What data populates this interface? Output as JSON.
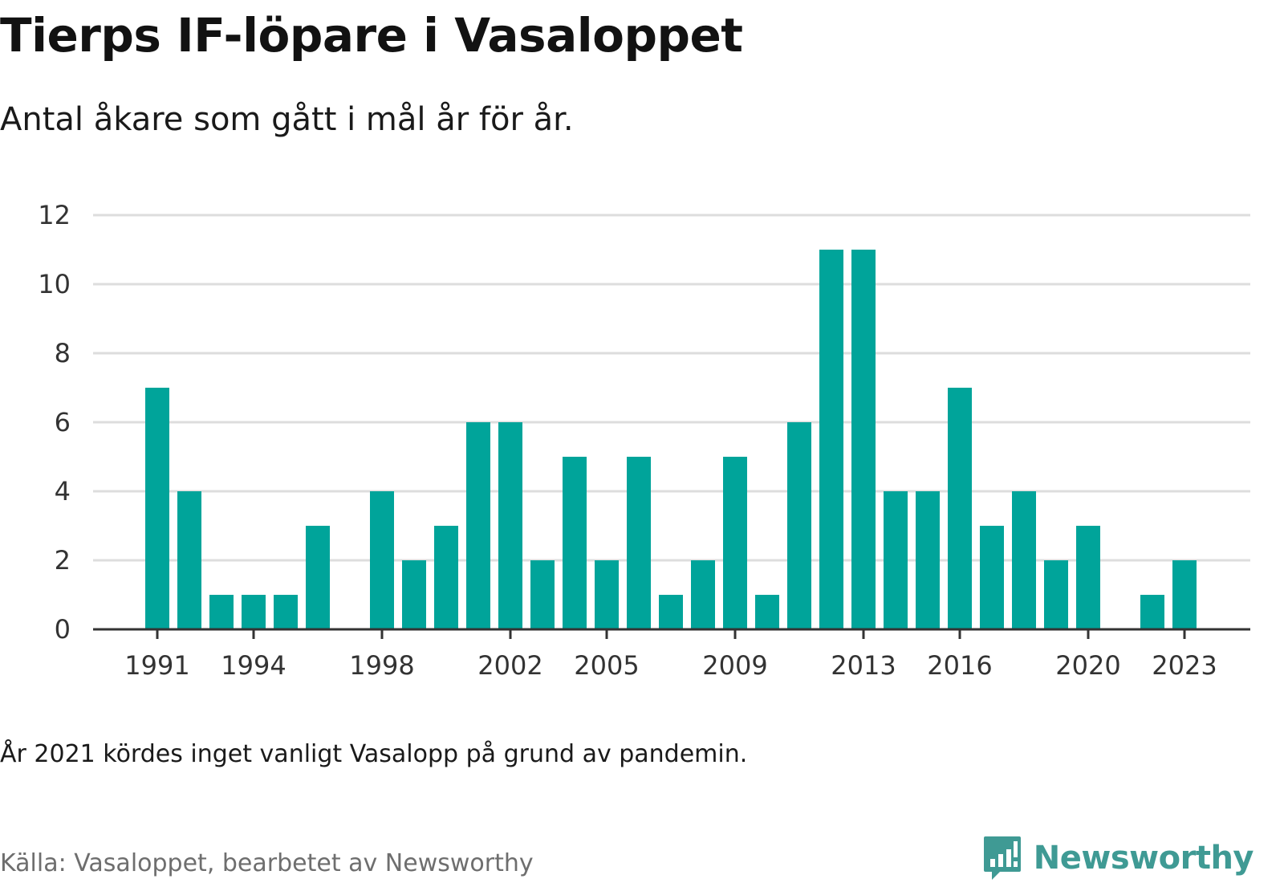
{
  "title": "Tierps IF-löpare i Vasaloppet",
  "subtitle": "Antal åkare som gått i mål år för år.",
  "note": "År 2021 kördes inget vanligt Vasalopp på grund av pandemin.",
  "source": "Källa: Vasaloppet, bearbetet av Newsworthy",
  "brand": {
    "name": "Newsworthy",
    "icon": "newsworthy-logo-icon"
  },
  "colors": {
    "bar": "#00a49a",
    "grid": "#dddddd",
    "axis": "#333333",
    "brand": "#3f9a94"
  },
  "chart_data": {
    "type": "bar",
    "x": [
      1991,
      1992,
      1993,
      1994,
      1995,
      1996,
      1997,
      1998,
      1999,
      2000,
      2001,
      2002,
      2003,
      2004,
      2005,
      2006,
      2007,
      2008,
      2009,
      2010,
      2011,
      2012,
      2013,
      2014,
      2015,
      2016,
      2017,
      2018,
      2019,
      2020,
      2021,
      2022,
      2023
    ],
    "values": [
      7,
      4,
      1,
      1,
      1,
      3,
      0,
      4,
      2,
      3,
      6,
      6,
      2,
      5,
      2,
      5,
      1,
      2,
      5,
      1,
      6,
      11,
      11,
      4,
      4,
      7,
      3,
      4,
      2,
      3,
      0,
      1,
      2
    ],
    "x_tick_labels": [
      "1991",
      "1994",
      "1998",
      "2002",
      "2005",
      "2009",
      "2013",
      "2016",
      "2020",
      "2023"
    ],
    "y_ticks": [
      0,
      2,
      4,
      6,
      8,
      10,
      12
    ],
    "ylim": [
      0,
      12
    ],
    "grid": true,
    "legend": "none"
  }
}
